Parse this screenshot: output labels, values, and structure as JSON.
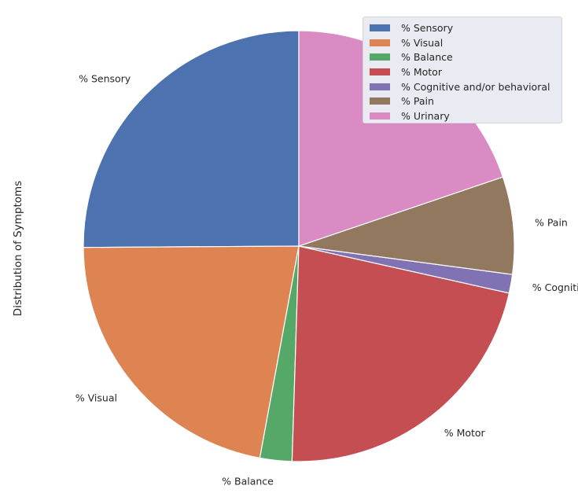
{
  "chart_data": {
    "type": "pie",
    "ylabel": "Distribution of Symptoms",
    "categories": [
      "% Sensory",
      "% Visual",
      "% Balance",
      "% Motor",
      "% Cognitive and/or behavioral",
      "% Pain",
      "% Urinary"
    ],
    "values": [
      25.1,
      22.0,
      2.4,
      22.0,
      1.4,
      7.3,
      19.8
    ],
    "colors": [
      "#4c72b0",
      "#dd8452",
      "#55a868",
      "#c44e52",
      "#8172b3",
      "#937860",
      "#da8bc3"
    ],
    "start_angle": 90,
    "direction": "counterclockwise",
    "legend": {
      "position": "top-right",
      "entries": [
        "% Sensory",
        "% Visual",
        "% Balance",
        "% Motor",
        "% Cognitive and/or behavioral",
        "% Pain",
        "% Urinary"
      ]
    }
  }
}
